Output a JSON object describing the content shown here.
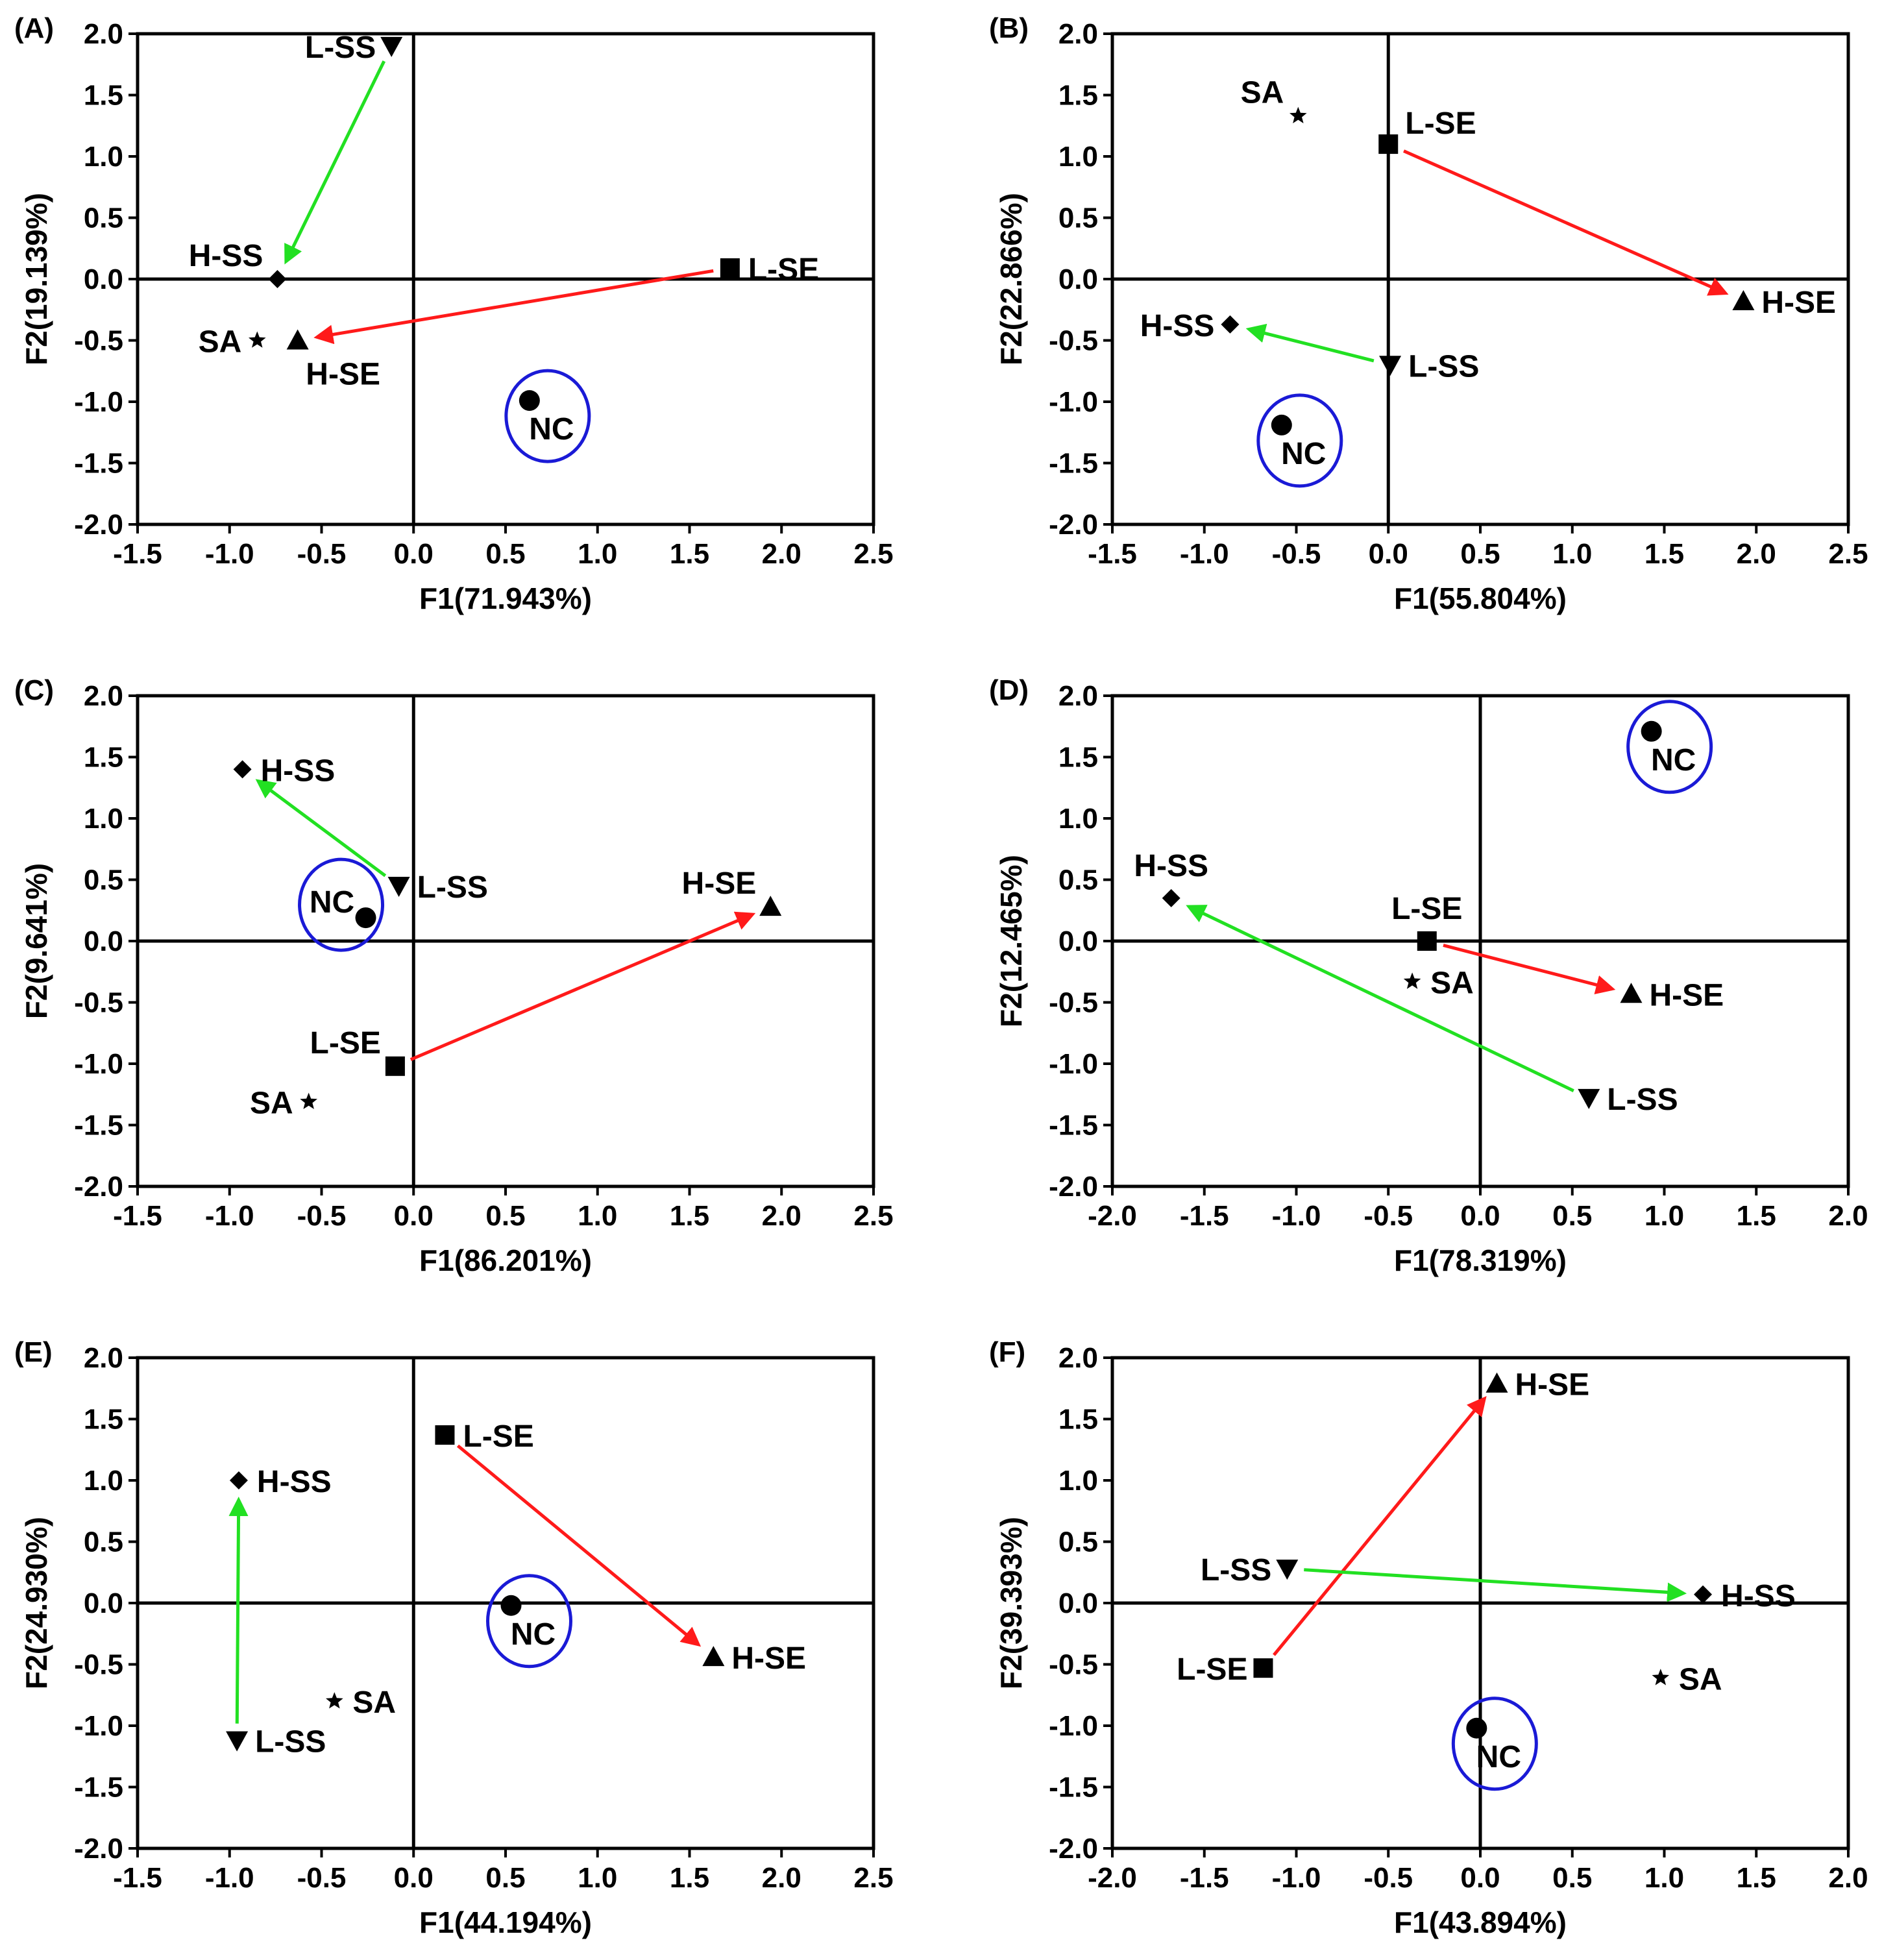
{
  "colors": {
    "green_arrow": "#22e022",
    "red_arrow": "#ff1a1a",
    "nc_circle": "#1a1ad6",
    "marker": "#000000"
  },
  "chart_data": [
    {
      "type": "scatter",
      "panel": "(A)",
      "xlabel": "F1(71.943%)",
      "ylabel": "F2(19.139%)",
      "xlim": [
        -1.5,
        2.5
      ],
      "ylim": [
        -2.0,
        2.0
      ],
      "xticks": [
        "-1.5",
        "-1.0",
        "-0.5",
        "0.0",
        "0.5",
        "1.0",
        "1.5",
        "2.0",
        "2.5"
      ],
      "yticks": [
        "-2.0",
        "-1.5",
        "-1.0",
        "-0.5",
        "0.0",
        "0.5",
        "1.0",
        "1.5",
        "2.0"
      ],
      "points": [
        {
          "label": "L-SS",
          "marker": "triangle-down",
          "x": -0.12,
          "y": 1.9,
          "label_pos": "left"
        },
        {
          "label": "H-SS",
          "marker": "diamond",
          "x": -0.74,
          "y": 0.0,
          "label_pos": "upper-left"
        },
        {
          "label": "L-SE",
          "marker": "square",
          "x": 1.72,
          "y": 0.09,
          "label_pos": "right"
        },
        {
          "label": "H-SE",
          "marker": "triangle-up",
          "x": -0.63,
          "y": -0.5,
          "label_pos": "below"
        },
        {
          "label": "SA",
          "marker": "star",
          "x": -0.85,
          "y": -0.5,
          "label_pos": "left"
        },
        {
          "label": "NC",
          "marker": "circle",
          "x": 0.63,
          "y": -0.99,
          "label_pos": "circled"
        }
      ],
      "arrows": [
        {
          "from": "L-SS",
          "to": "H-SS",
          "color": "green"
        },
        {
          "from": "L-SE",
          "to": "H-SE",
          "color": "red"
        }
      ]
    },
    {
      "type": "scatter",
      "panel": "(B)",
      "xlabel": "F1(55.804%)",
      "ylabel": "F2(22.866%)",
      "xlim": [
        -1.5,
        2.5
      ],
      "ylim": [
        -2.0,
        2.0
      ],
      "xticks": [
        "-1.5",
        "-1.0",
        "-0.5",
        "0.0",
        "0.5",
        "1.0",
        "1.5",
        "2.0",
        "2.5"
      ],
      "yticks": [
        "-2.0",
        "-1.5",
        "-1.0",
        "-0.5",
        "0.0",
        "0.5",
        "1.0",
        "1.5",
        "2.0"
      ],
      "points": [
        {
          "label": "SA",
          "marker": "star",
          "x": -0.49,
          "y": 1.33,
          "label_pos": "upper-left"
        },
        {
          "label": "L-SE",
          "marker": "square",
          "x": 0.0,
          "y": 1.1,
          "label_pos": "upper-right"
        },
        {
          "label": "H-SE",
          "marker": "triangle-up",
          "x": 1.93,
          "y": -0.18,
          "label_pos": "right"
        },
        {
          "label": "H-SS",
          "marker": "diamond",
          "x": -0.86,
          "y": -0.37,
          "label_pos": "left"
        },
        {
          "label": "L-SS",
          "marker": "triangle-down",
          "x": 0.01,
          "y": -0.7,
          "label_pos": "right"
        },
        {
          "label": "NC",
          "marker": "circle",
          "x": -0.58,
          "y": -1.19,
          "label_pos": "circled"
        }
      ],
      "arrows": [
        {
          "from": "L-SE",
          "to": "H-SE",
          "color": "red"
        },
        {
          "from": "L-SS",
          "to": "H-SS",
          "color": "green"
        }
      ]
    },
    {
      "type": "scatter",
      "panel": "(C)",
      "xlabel": "F1(86.201%)",
      "ylabel": "F2(9.641%)",
      "xlim": [
        -1.5,
        2.5
      ],
      "ylim": [
        -2.0,
        2.0
      ],
      "xticks": [
        "-1.5",
        "-1.0",
        "-0.5",
        "0.0",
        "0.5",
        "1.0",
        "1.5",
        "2.0",
        "2.5"
      ],
      "yticks": [
        "-2.0",
        "-1.5",
        "-1.0",
        "-0.5",
        "0.0",
        "0.5",
        "1.0",
        "1.5",
        "2.0"
      ],
      "points": [
        {
          "label": "H-SS",
          "marker": "diamond",
          "x": -0.93,
          "y": 1.4,
          "label_pos": "right"
        },
        {
          "label": "L-SS",
          "marker": "triangle-down",
          "x": -0.08,
          "y": 0.45,
          "label_pos": "right"
        },
        {
          "label": "NC",
          "marker": "circle",
          "x": -0.26,
          "y": 0.19,
          "label_pos": "circled-left"
        },
        {
          "label": "H-SE",
          "marker": "triangle-up",
          "x": 1.94,
          "y": 0.28,
          "label_pos": "upper-left"
        },
        {
          "label": "L-SE",
          "marker": "square",
          "x": -0.1,
          "y": -1.02,
          "label_pos": "upper-left"
        },
        {
          "label": "SA",
          "marker": "star",
          "x": -0.57,
          "y": -1.31,
          "label_pos": "left"
        }
      ],
      "arrows": [
        {
          "from": "L-SS",
          "to": "H-SS",
          "color": "green"
        },
        {
          "from": "L-SE",
          "to": "H-SE",
          "color": "red"
        }
      ]
    },
    {
      "type": "scatter",
      "panel": "(D)",
      "xlabel": "F1(78.319%)",
      "ylabel": "F2(12.465%)",
      "xlim": [
        -2.0,
        2.0
      ],
      "ylim": [
        -2.0,
        2.0
      ],
      "xticks": [
        "-2.0",
        "-1.5",
        "-1.0",
        "-0.5",
        "0.0",
        "0.5",
        "1.0",
        "1.5",
        "2.0"
      ],
      "yticks": [
        "-2.0",
        "-1.5",
        "-1.0",
        "-0.5",
        "0.0",
        "0.5",
        "1.0",
        "1.5",
        "2.0"
      ],
      "points": [
        {
          "label": "NC",
          "marker": "circle",
          "x": 0.93,
          "y": 1.71,
          "label_pos": "circled"
        },
        {
          "label": "H-SS",
          "marker": "diamond",
          "x": -1.68,
          "y": 0.35,
          "label_pos": "above"
        },
        {
          "label": "L-SE",
          "marker": "square",
          "x": -0.29,
          "y": 0.0,
          "label_pos": "above"
        },
        {
          "label": "SA",
          "marker": "star",
          "x": -0.37,
          "y": -0.33,
          "label_pos": "right"
        },
        {
          "label": "H-SE",
          "marker": "triangle-up",
          "x": 0.82,
          "y": -0.43,
          "label_pos": "right"
        },
        {
          "label": "L-SS",
          "marker": "triangle-down",
          "x": 0.59,
          "y": -1.28,
          "label_pos": "right"
        }
      ],
      "arrows": [
        {
          "from": "L-SS",
          "to": "H-SS",
          "color": "green"
        },
        {
          "from": "L-SE",
          "to": "H-SE",
          "color": "red"
        }
      ]
    },
    {
      "type": "scatter",
      "panel": "(E)",
      "xlabel": "F1(44.194%)",
      "ylabel": "F2(24.930%)",
      "xlim": [
        -1.5,
        2.5
      ],
      "ylim": [
        -2.0,
        2.0
      ],
      "xticks": [
        "-1.5",
        "-1.0",
        "-0.5",
        "0.0",
        "0.5",
        "1.0",
        "1.5",
        "2.0",
        "2.5"
      ],
      "yticks": [
        "-2.0",
        "-1.5",
        "-1.0",
        "-0.5",
        "0.0",
        "0.5",
        "1.0",
        "1.5",
        "2.0"
      ],
      "points": [
        {
          "label": "L-SE",
          "marker": "square",
          "x": 0.17,
          "y": 1.37,
          "label_pos": "right"
        },
        {
          "label": "H-SS",
          "marker": "diamond",
          "x": -0.95,
          "y": 1.0,
          "label_pos": "right"
        },
        {
          "label": "NC",
          "marker": "circle",
          "x": 0.53,
          "y": -0.02,
          "label_pos": "circled"
        },
        {
          "label": "H-SE",
          "marker": "triangle-up",
          "x": 1.63,
          "y": -0.44,
          "label_pos": "right"
        },
        {
          "label": "SA",
          "marker": "star",
          "x": -0.43,
          "y": -0.8,
          "label_pos": "right"
        },
        {
          "label": "L-SS",
          "marker": "triangle-down",
          "x": -0.96,
          "y": -1.12,
          "label_pos": "right"
        }
      ],
      "arrows": [
        {
          "from": "L-SE",
          "to": "H-SE",
          "color": "red"
        },
        {
          "from": "L-SS",
          "to": "H-SS",
          "color": "green"
        }
      ]
    },
    {
      "type": "scatter",
      "panel": "(F)",
      "xlabel": "F1(43.894%)",
      "ylabel": "F2(39.393%)",
      "xlim": [
        -2.0,
        2.0
      ],
      "ylim": [
        -2.0,
        2.0
      ],
      "xticks": [
        "-2.0",
        "-1.5",
        "-1.0",
        "-0.5",
        "0.0",
        "0.5",
        "1.0",
        "1.5",
        "2.0"
      ],
      "yticks": [
        "-2.0",
        "-1.5",
        "-1.0",
        "-0.5",
        "0.0",
        "0.5",
        "1.0",
        "1.5",
        "2.0"
      ],
      "points": [
        {
          "label": "H-SE",
          "marker": "triangle-up",
          "x": 0.09,
          "y": 1.79,
          "label_pos": "right"
        },
        {
          "label": "L-SS",
          "marker": "triangle-down",
          "x": -1.05,
          "y": 0.28,
          "label_pos": "left"
        },
        {
          "label": "H-SS",
          "marker": "diamond",
          "x": 1.21,
          "y": 0.07,
          "label_pos": "right"
        },
        {
          "label": "L-SE",
          "marker": "square",
          "x": -1.18,
          "y": -0.53,
          "label_pos": "left"
        },
        {
          "label": "SA",
          "marker": "star",
          "x": 0.98,
          "y": -0.61,
          "label_pos": "right"
        },
        {
          "label": "NC",
          "marker": "circle",
          "x": -0.02,
          "y": -1.02,
          "label_pos": "circled"
        }
      ],
      "arrows": [
        {
          "from": "L-SE",
          "to": "H-SE",
          "color": "red"
        },
        {
          "from": "L-SS",
          "to": "H-SS",
          "color": "green"
        }
      ]
    }
  ]
}
